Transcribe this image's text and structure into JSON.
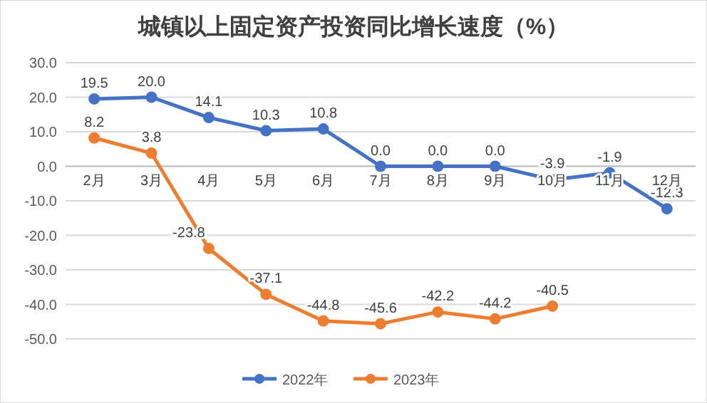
{
  "chart_data": {
    "type": "line",
    "title": "城镇以上固定资产投资同比增长速度（%）",
    "categories": [
      "2月",
      "3月",
      "4月",
      "5月",
      "6月",
      "7月",
      "8月",
      "9月",
      "10月",
      "11月",
      "12月"
    ],
    "series": [
      {
        "name": "2022年",
        "color": "#4472c4",
        "values": [
          19.5,
          20.0,
          14.1,
          10.3,
          10.8,
          0.0,
          0.0,
          0.0,
          -3.9,
          -1.9,
          -12.3
        ],
        "value_labels": [
          "19.5",
          "20.0",
          "14.1",
          "10.3",
          "10.8",
          "0.0",
          "0.0",
          "0.0",
          "-3.9",
          "-1.9",
          "-12.3"
        ]
      },
      {
        "name": "2023年",
        "color": "#ed7d31",
        "values": [
          8.2,
          3.8,
          -23.8,
          -37.1,
          -44.8,
          -45.6,
          -42.2,
          -44.2,
          -40.5,
          null,
          null
        ],
        "value_labels": [
          "8.2",
          "3.8",
          "-23.8",
          "-37.1",
          "-44.8",
          "-45.6",
          "-42.2",
          "-44.2",
          "-40.5",
          null,
          null
        ]
      }
    ],
    "ylim": [
      -50,
      30
    ],
    "yticks": [
      {
        "value": -50,
        "label": "-50.0"
      },
      {
        "value": -40,
        "label": "-40.0"
      },
      {
        "value": -30,
        "label": "-30.0"
      },
      {
        "value": -20,
        "label": "-20.0"
      },
      {
        "value": -10,
        "label": "-10.0"
      },
      {
        "value": 0,
        "label": "0.0"
      },
      {
        "value": 10,
        "label": "10.0"
      },
      {
        "value": 20,
        "label": "20.0"
      },
      {
        "value": 30,
        "label": "30.0"
      }
    ],
    "grid": "y",
    "legend": "bottom",
    "marker": "circle",
    "line_style": "solid"
  }
}
